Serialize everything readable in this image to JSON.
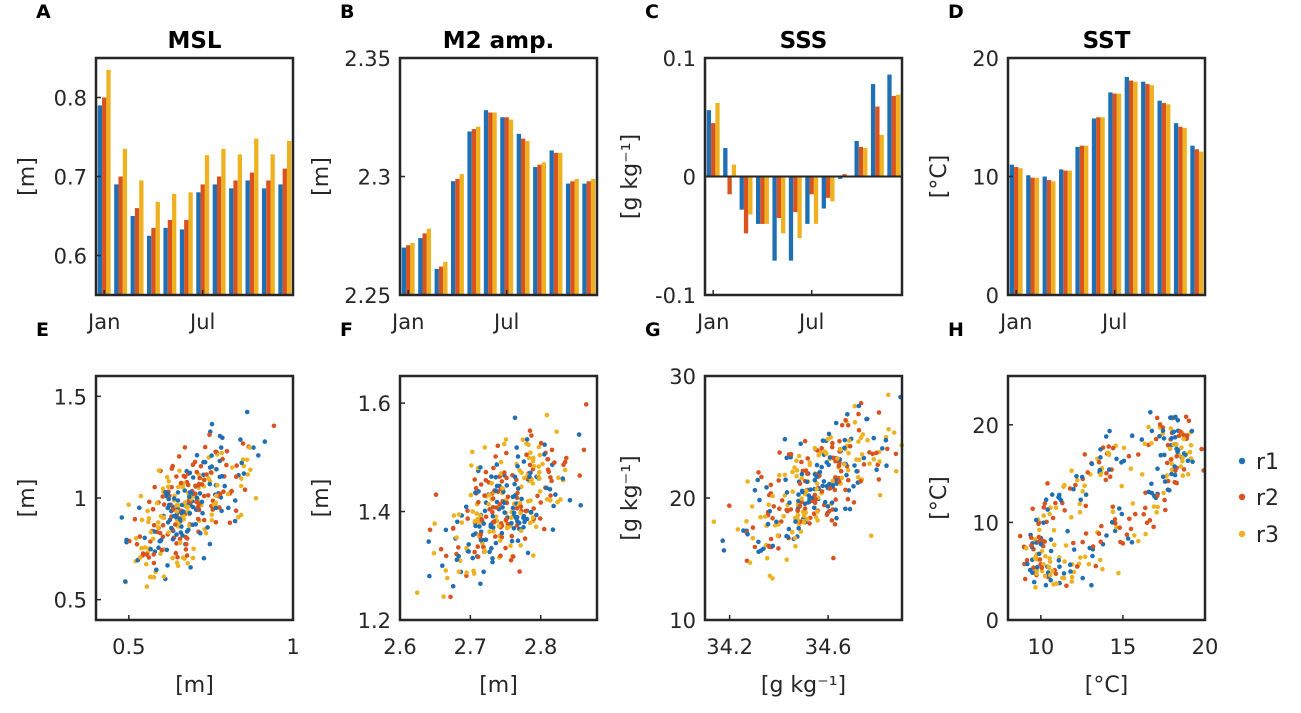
{
  "colors": {
    "r1": "#1f6fb4",
    "r2": "#d9531e",
    "r3": "#eeb220",
    "axis": "#262626"
  },
  "legend": {
    "entries": [
      "r1",
      "r2",
      "r3"
    ]
  },
  "chart_data": [
    {
      "id": "A",
      "type": "bar",
      "panel_label": "A",
      "title": "MSL",
      "ylabel": "[m]",
      "xlabel": "",
      "ylim": [
        0.55,
        0.85
      ],
      "yticks": [
        {
          "v": 0.6,
          "label": "0.6"
        },
        {
          "v": 0.7,
          "label": "0.7"
        },
        {
          "v": 0.8,
          "label": "0.8"
        }
      ],
      "xticks": [
        {
          "month": 1,
          "label": "Jan"
        },
        {
          "month": 7,
          "label": "Jul"
        }
      ],
      "series": [
        {
          "name": "r1",
          "values": [
            0.79,
            0.69,
            0.65,
            0.625,
            0.635,
            0.633,
            0.68,
            0.69,
            0.685,
            0.695,
            0.685,
            0.69
          ]
        },
        {
          "name": "r2",
          "values": [
            0.8,
            0.7,
            0.66,
            0.635,
            0.645,
            0.645,
            0.69,
            0.7,
            0.695,
            0.705,
            0.695,
            0.71
          ]
        },
        {
          "name": "r3",
          "values": [
            0.835,
            0.735,
            0.695,
            0.668,
            0.678,
            0.68,
            0.727,
            0.735,
            0.728,
            0.748,
            0.728,
            0.745
          ]
        }
      ]
    },
    {
      "id": "B",
      "type": "bar",
      "panel_label": "B",
      "title": "M2 amp.",
      "ylabel": "[m]",
      "xlabel": "",
      "ylim": [
        2.25,
        2.35
      ],
      "yticks": [
        {
          "v": 2.25,
          "label": "2.25"
        },
        {
          "v": 2.3,
          "label": "2.3"
        },
        {
          "v": 2.35,
          "label": "2.35"
        }
      ],
      "xticks": [
        {
          "month": 1,
          "label": "Jan"
        },
        {
          "month": 7,
          "label": "Jul"
        }
      ],
      "series": [
        {
          "name": "r1",
          "values": [
            2.27,
            2.274,
            2.261,
            2.298,
            2.319,
            2.328,
            2.325,
            2.318,
            2.304,
            2.311,
            2.297,
            2.297
          ]
        },
        {
          "name": "r2",
          "values": [
            2.271,
            2.276,
            2.262,
            2.299,
            2.32,
            2.327,
            2.325,
            2.316,
            2.305,
            2.31,
            2.298,
            2.298
          ]
        },
        {
          "name": "r3",
          "values": [
            2.272,
            2.278,
            2.264,
            2.301,
            2.321,
            2.327,
            2.324,
            2.315,
            2.306,
            2.31,
            2.299,
            2.299
          ]
        }
      ]
    },
    {
      "id": "C",
      "type": "bar",
      "panel_label": "C",
      "title": "SSS",
      "ylabel": "[g kg⁻¹]",
      "xlabel": "",
      "ylim": [
        -0.1,
        0.1
      ],
      "yticks": [
        {
          "v": -0.1,
          "label": "-0.1"
        },
        {
          "v": 0,
          "label": "0"
        },
        {
          "v": 0.1,
          "label": "0.1"
        }
      ],
      "xticks": [
        {
          "month": 1,
          "label": "Jan"
        },
        {
          "month": 7,
          "label": "Jul"
        }
      ],
      "series": [
        {
          "name": "r1",
          "values": [
            0.056,
            0.024,
            -0.028,
            -0.04,
            -0.071,
            -0.071,
            -0.04,
            -0.027,
            -0.002,
            0.03,
            0.078,
            0.086
          ]
        },
        {
          "name": "r2",
          "values": [
            0.045,
            -0.015,
            -0.048,
            -0.04,
            -0.035,
            -0.03,
            -0.015,
            -0.018,
            0.002,
            0.025,
            0.059,
            0.068
          ]
        },
        {
          "name": "r3",
          "values": [
            0.062,
            0.01,
            -0.032,
            -0.04,
            -0.048,
            -0.052,
            -0.04,
            -0.021,
            0.0,
            0.024,
            0.035,
            0.069
          ]
        }
      ]
    },
    {
      "id": "D",
      "type": "bar",
      "panel_label": "D",
      "title": "SST",
      "ylabel": "[°C]",
      "xlabel": "",
      "ylim": [
        0,
        20
      ],
      "yticks": [
        {
          "v": 0,
          "label": "0"
        },
        {
          "v": 10,
          "label": "10"
        },
        {
          "v": 20,
          "label": "20"
        }
      ],
      "xticks": [
        {
          "month": 1,
          "label": "Jan"
        },
        {
          "month": 7,
          "label": "Jul"
        }
      ],
      "series": [
        {
          "name": "r1",
          "values": [
            11.0,
            10.1,
            10.0,
            10.6,
            12.5,
            14.9,
            17.1,
            18.4,
            18.0,
            16.4,
            14.5,
            12.6
          ]
        },
        {
          "name": "r2",
          "values": [
            10.8,
            9.9,
            9.7,
            10.5,
            12.6,
            15.0,
            17.0,
            18.1,
            17.8,
            16.2,
            14.2,
            12.3
          ]
        },
        {
          "name": "r3",
          "values": [
            10.7,
            9.9,
            9.6,
            10.5,
            12.6,
            15.0,
            17.0,
            18.0,
            17.7,
            16.1,
            14.1,
            12.1
          ]
        }
      ]
    },
    {
      "id": "E",
      "type": "scatter",
      "panel_label": "E",
      "title": "",
      "xlabel": "[m]",
      "ylabel": "[m]",
      "xlim": [
        0.4,
        1.0
      ],
      "ylim": [
        0.4,
        1.6
      ],
      "xticks": [
        {
          "v": 0.5,
          "label": "0.5"
        },
        {
          "v": 1,
          "label": "1"
        }
      ],
      "yticks": [
        {
          "v": 0.5,
          "label": "0.5"
        },
        {
          "v": 1,
          "label": "1"
        },
        {
          "v": 1.5,
          "label": "1.5"
        }
      ],
      "gen": {
        "n": 115,
        "cx": 0.68,
        "sx": 0.085,
        "cy": 0.95,
        "sy": 0.16,
        "rho": 0.55
      }
    },
    {
      "id": "F",
      "type": "scatter",
      "panel_label": "F",
      "title": "",
      "xlabel": "[m]",
      "ylabel": "[m]",
      "xlim": [
        2.6,
        2.88
      ],
      "ylim": [
        1.2,
        1.65
      ],
      "xticks": [
        {
          "v": 2.6,
          "label": "2.6"
        },
        {
          "v": 2.7,
          "label": "2.7"
        },
        {
          "v": 2.8,
          "label": "2.8"
        }
      ],
      "yticks": [
        {
          "v": 1.2,
          "label": "1.2"
        },
        {
          "v": 1.4,
          "label": "1.4"
        },
        {
          "v": 1.6,
          "label": "1.6"
        }
      ],
      "gen": {
        "n": 115,
        "cx": 2.75,
        "sx": 0.048,
        "cy": 1.41,
        "sy": 0.065,
        "rho": 0.6
      }
    },
    {
      "id": "G",
      "type": "scatter",
      "panel_label": "G",
      "title": "",
      "xlabel": "[g kg⁻¹]",
      "ylabel": "[g kg⁻¹]",
      "xlim": [
        34.1,
        34.9
      ],
      "ylim": [
        10,
        30
      ],
      "xticks": [
        {
          "v": 34.2,
          "label": "34.2"
        },
        {
          "v": 34.6,
          "label": "34.6"
        }
      ],
      "yticks": [
        {
          "v": 10,
          "label": "10"
        },
        {
          "v": 20,
          "label": "20"
        },
        {
          "v": 30,
          "label": "30"
        }
      ],
      "gen": {
        "n": 115,
        "cx": 34.55,
        "sx": 0.15,
        "cy": 21.0,
        "sy": 3.0,
        "rho": 0.65
      }
    },
    {
      "id": "H",
      "type": "scatter",
      "panel_label": "H",
      "title": "",
      "xlabel": "[°C]",
      "ylabel": "[°C]",
      "xlim": [
        8,
        20
      ],
      "ylim": [
        0,
        25
      ],
      "xticks": [
        {
          "v": 10,
          "label": "10"
        },
        {
          "v": 15,
          "label": "15"
        },
        {
          "v": 20,
          "label": "20"
        }
      ],
      "yticks": [
        {
          "v": 0,
          "label": "0"
        },
        {
          "v": 10,
          "label": "10"
        },
        {
          "v": 20,
          "label": "20"
        }
      ],
      "loop": {
        "n": 110,
        "cx": 14.0,
        "rx": 4.5,
        "cy": 12.0,
        "ry": 7.0,
        "noise_x": 0.5,
        "noise_y": 1.3
      }
    }
  ]
}
